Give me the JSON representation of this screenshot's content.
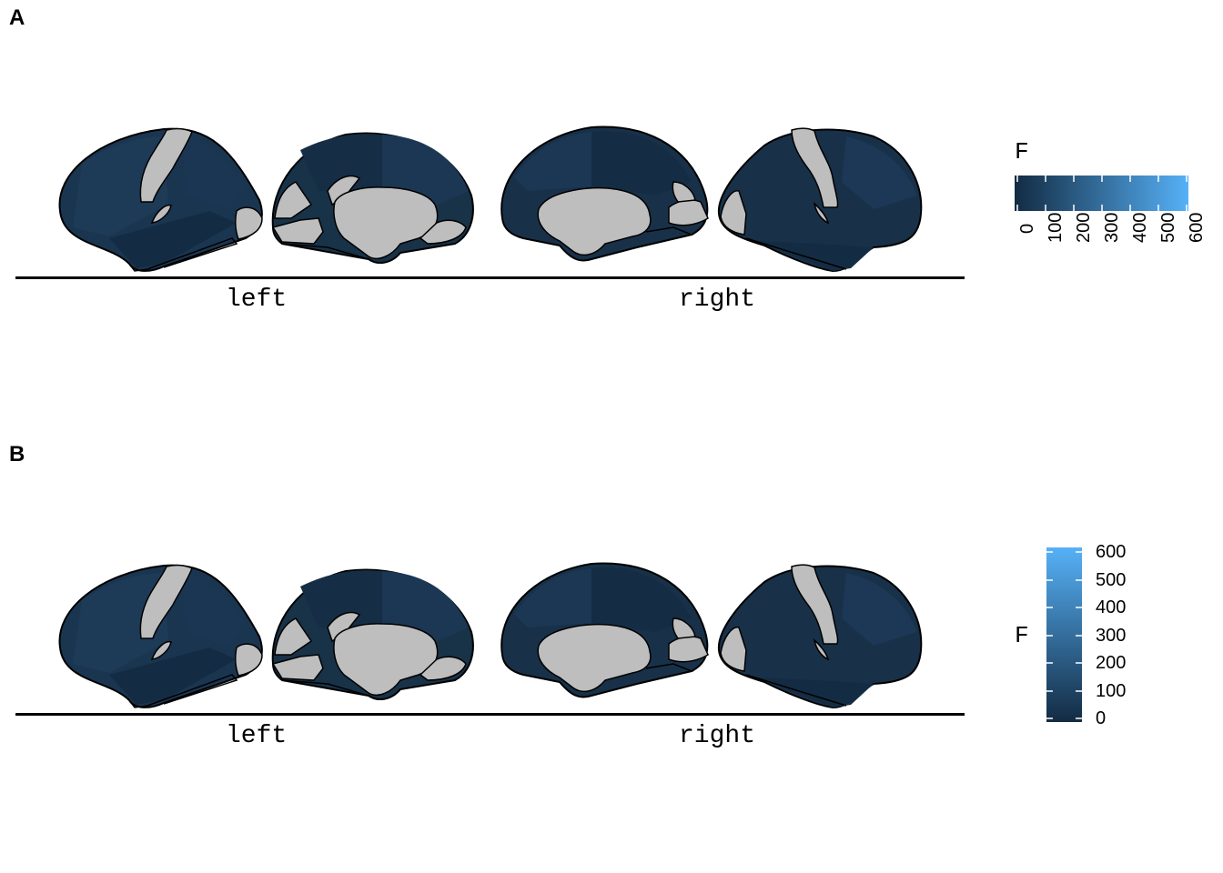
{
  "panels": [
    {
      "tag": "A",
      "hemispheres": [
        "left",
        "right"
      ],
      "legend": {
        "title": "F",
        "orientation": "horizontal"
      }
    },
    {
      "tag": "B",
      "hemispheres": [
        "left",
        "right"
      ],
      "legend": {
        "title": "F",
        "orientation": "vertical"
      }
    }
  ],
  "colorbar": {
    "ticks": [
      "0",
      "100",
      "200",
      "300",
      "400",
      "500",
      "600"
    ],
    "range": [
      0,
      600
    ],
    "low_color": "#132b43",
    "high_color": "#56b1f7"
  },
  "colors": {
    "medial_wall": "#bebebe",
    "region_fill": "#172f47",
    "outline": "#000000"
  }
}
